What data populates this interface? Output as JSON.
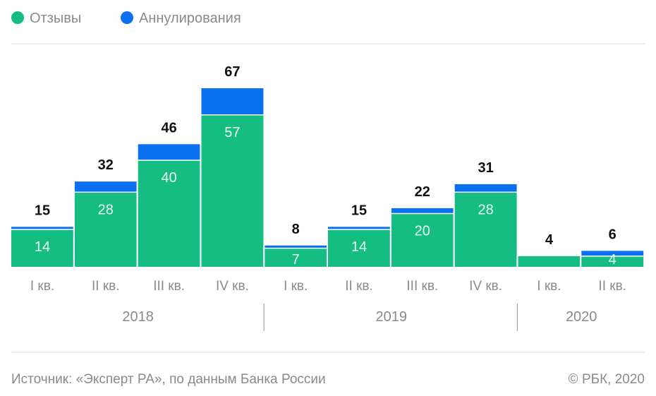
{
  "chart_data": {
    "type": "bar",
    "stacked": true,
    "legend": {
      "position": "top-left",
      "items": [
        {
          "label": "Отзывы",
          "color": "#16bd82"
        },
        {
          "label": "Аннулирования",
          "color": "#0a70f0"
        }
      ]
    },
    "categories": [
      "I кв.",
      "II кв.",
      "III кв.",
      "IV кв.",
      "I кв.",
      "II кв.",
      "III кв.",
      "IV кв.",
      "I кв.",
      "II кв."
    ],
    "year_groups": [
      {
        "label": "2018",
        "count": 4
      },
      {
        "label": "2019",
        "count": 4
      },
      {
        "label": "2020",
        "count": 2
      }
    ],
    "series": [
      {
        "name": "Отзывы",
        "color": "#16bd82",
        "values": [
          14,
          28,
          40,
          57,
          7,
          14,
          20,
          28,
          4,
          4
        ]
      },
      {
        "name": "Аннулирования",
        "color": "#0a70f0",
        "values": [
          1,
          4,
          6,
          10,
          1,
          1,
          2,
          3,
          0,
          2
        ]
      }
    ],
    "inner_labels": [
      "14",
      "28",
      "40",
      "57",
      "7",
      "14",
      "20",
      "28",
      "",
      "4"
    ],
    "totals": [
      15,
      32,
      46,
      67,
      8,
      15,
      22,
      31,
      4,
      6
    ],
    "ylim": [
      0,
      67
    ],
    "grid": false
  },
  "footer": {
    "source": "Источник: «Эксперт РА», по данным Банка России",
    "copyright": "© РБК, 2020"
  },
  "colors": {
    "divider": "#e6e6e6",
    "axis_text": "#8a8a8a",
    "total_text": "#111111",
    "inner_text": "#e9fbf3"
  }
}
